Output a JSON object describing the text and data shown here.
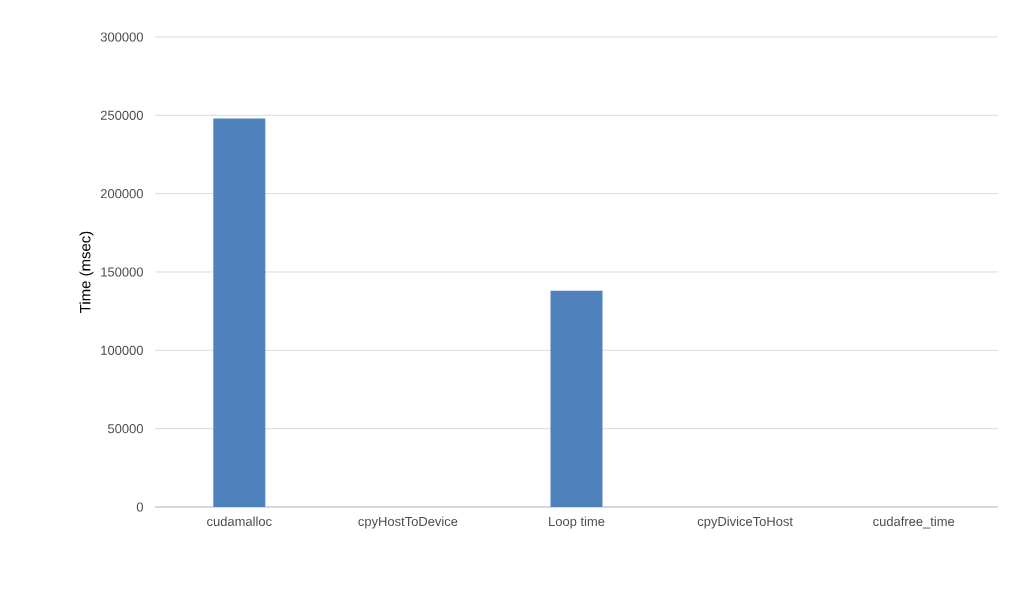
{
  "chart_data": {
    "type": "bar",
    "ylabel": "Time (msec)",
    "categories": [
      "cudamalloc",
      "cpyHostToDevice",
      "Loop time",
      "cpyDiviceToHost",
      "cudafree_time"
    ],
    "values": [
      248000,
      0,
      138000,
      0,
      0
    ],
    "color": "#4f81bd",
    "ylim": [
      0,
      300000
    ],
    "yticks": [
      0,
      50000,
      100000,
      150000,
      200000,
      250000,
      300000
    ],
    "grid": "y"
  }
}
